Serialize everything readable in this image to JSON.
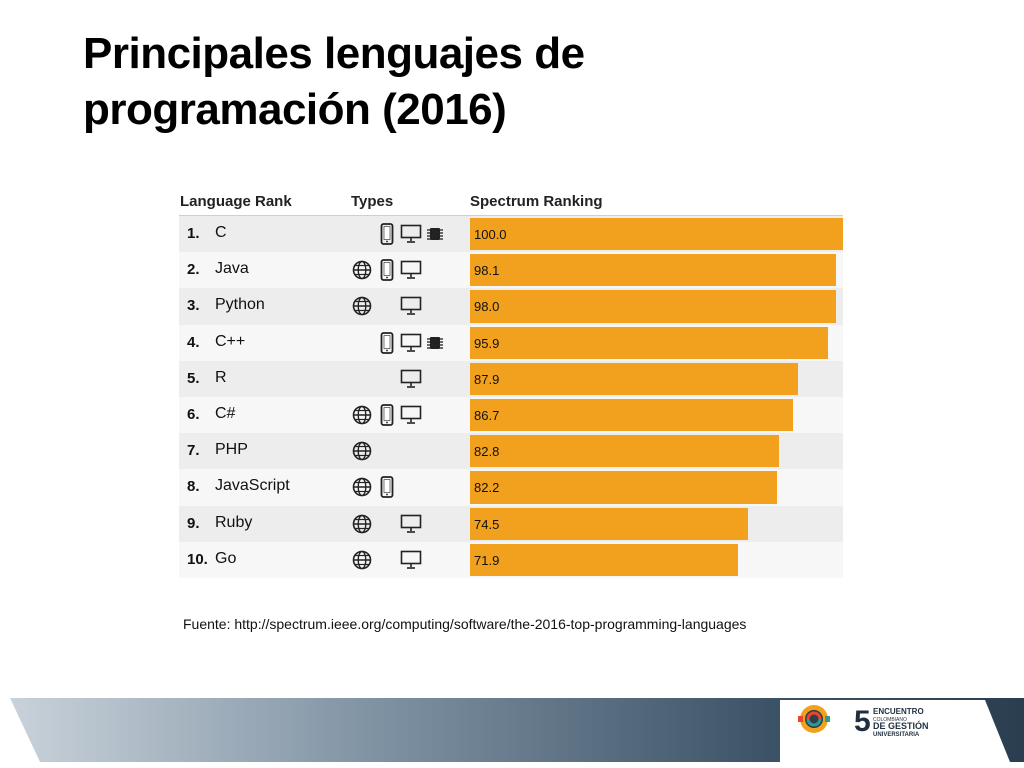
{
  "slide": {
    "title_line1": "Principales lenguajes de",
    "title_line2": "programación (2016)",
    "source": "Fuente: http://spectrum.ieee.org/computing/software/the-2016-top-programming-languages"
  },
  "table": {
    "header_rank": "Language Rank",
    "header_types": "Types",
    "header_spectrum": "Spectrum Ranking",
    "bar_color": "#f2a11f"
  },
  "chart_data": {
    "type": "bar",
    "orientation": "horizontal",
    "categories": [
      "C",
      "Java",
      "Python",
      "C++",
      "R",
      "C#",
      "PHP",
      "JavaScript",
      "Ruby",
      "Go"
    ],
    "ranks": [
      "1.",
      "2.",
      "3.",
      "4.",
      "5.",
      "6.",
      "7.",
      "8.",
      "9.",
      "10."
    ],
    "values": [
      100.0,
      98.1,
      98.0,
      95.9,
      87.9,
      86.7,
      82.8,
      82.2,
      74.5,
      71.9
    ],
    "value_labels": [
      "100.0",
      "98.1",
      "98.0",
      "95.9",
      "87.9",
      "86.7",
      "82.8",
      "82.2",
      "74.5",
      "71.9"
    ],
    "types": [
      [
        "mobile",
        "desktop",
        "embedded"
      ],
      [
        "web",
        "mobile",
        "desktop"
      ],
      [
        "web",
        "desktop"
      ],
      [
        "mobile",
        "desktop",
        "embedded"
      ],
      [
        "desktop"
      ],
      [
        "web",
        "mobile",
        "desktop"
      ],
      [
        "web"
      ],
      [
        "web",
        "mobile"
      ],
      [
        "web",
        "desktop"
      ],
      [
        "web",
        "desktop"
      ]
    ],
    "xlim": [
      0,
      100
    ],
    "grid": false
  },
  "branding": {
    "logo_number": "5",
    "logo_line1": "ENCUENTRO",
    "logo_line2": "COLOMBIANO",
    "logo_line3": "DE GESTIÓN",
    "logo_line4": "UNIVERSITARIA"
  }
}
